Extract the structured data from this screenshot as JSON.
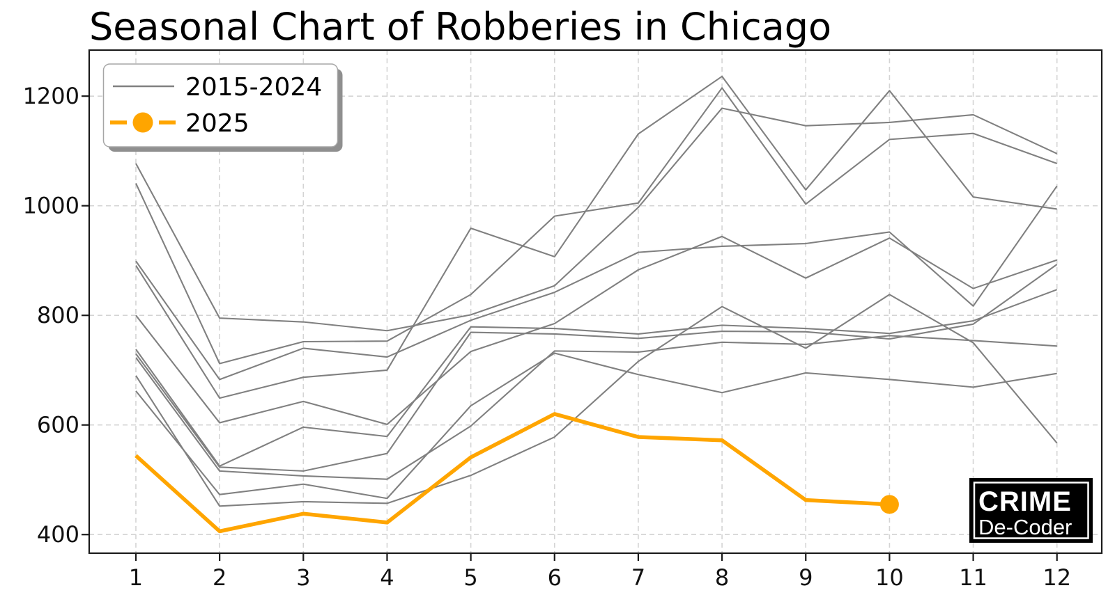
{
  "title": "Seasonal Chart of Robberies in Chicago",
  "legend": {
    "items": [
      {
        "label": "2015-2024"
      },
      {
        "label": "2025"
      }
    ]
  },
  "watermark": {
    "line1": "CRIME",
    "line2": "De-Coder"
  },
  "colors": {
    "historical": "#808080",
    "current": "#FFA500",
    "grid": "#d4d4d4",
    "spine": "#1a1a1a",
    "legend_border": "#a6a6a6",
    "legend_shadow": "#8f8f8f",
    "logo_bg": "#000000",
    "logo_text": "#ffffff"
  },
  "chart_data": {
    "type": "line",
    "title": "Seasonal Chart of Robberies in Chicago",
    "xlabel": "",
    "ylabel": "",
    "grid": true,
    "legend_position": "upper left",
    "xlim": [
      0.4425,
      12.535
    ],
    "ylim": [
      366,
      1284
    ],
    "xticks": [
      1,
      2,
      3,
      4,
      5,
      6,
      7,
      8,
      9,
      10,
      11,
      12
    ],
    "yticks": [
      400,
      600,
      800,
      1000,
      1200
    ],
    "historical": {
      "label": "2015-2024",
      "color": "#808080",
      "series": [
        [
          1077,
          795,
          788,
          772,
          801,
          854,
          997,
          1178,
          1146,
          1152,
          1166,
          1095
        ],
        [
          1041,
          712,
          752,
          753,
          838,
          981,
          1005,
          1215,
          1003,
          1121,
          1132,
          1077
        ],
        [
          891,
          649,
          687,
          700,
          959,
          907,
          1131,
          1236,
          1029,
          1210,
          1016,
          994
        ],
        [
          899,
          683,
          740,
          724,
          791,
          842,
          915,
          926,
          931,
          952,
          817,
          1036
        ],
        [
          800,
          604,
          643,
          601,
          734,
          785,
          883,
          944,
          868,
          941,
          849,
          901
        ],
        [
          738,
          525,
          596,
          579,
          779,
          776,
          766,
          782,
          776,
          767,
          790,
          847
        ],
        [
          730,
          523,
          516,
          548,
          769,
          766,
          758,
          771,
          770,
          757,
          784,
          893
        ],
        [
          723,
          516,
          507,
          501,
          598,
          735,
          733,
          751,
          747,
          763,
          754,
          744
        ],
        [
          690,
          452,
          460,
          457,
          508,
          578,
          716,
          816,
          740,
          838,
          750,
          567
        ],
        [
          662,
          473,
          492,
          466,
          635,
          731,
          692,
          659,
          695,
          683,
          669,
          694
        ]
      ]
    },
    "current": {
      "label": "2025",
      "color": "#FFA500",
      "months": [
        1,
        2,
        3,
        4,
        5,
        6,
        7,
        8,
        9,
        10
      ],
      "values": [
        544,
        406,
        438,
        422,
        541,
        620,
        578,
        572,
        463,
        455
      ],
      "marker_month": 10
    }
  }
}
